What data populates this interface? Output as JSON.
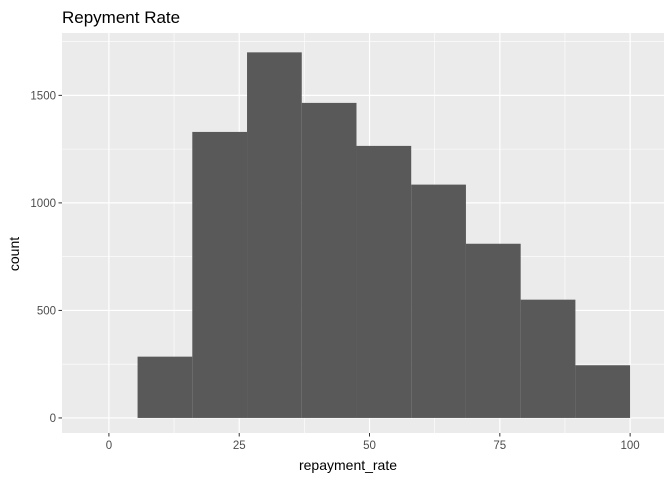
{
  "chart_data": {
    "type": "bar",
    "subtype": "histogram",
    "title": "Repyment Rate",
    "xlabel": "repayment_rate",
    "ylabel": "count",
    "bins": [
      {
        "x0": 5.5,
        "x1": 16.0,
        "count": 285
      },
      {
        "x0": 16.0,
        "x1": 26.5,
        "count": 1330
      },
      {
        "x0": 26.5,
        "x1": 37.0,
        "count": 1700
      },
      {
        "x0": 37.0,
        "x1": 47.5,
        "count": 1465
      },
      {
        "x0": 47.5,
        "x1": 58.0,
        "count": 1265
      },
      {
        "x0": 58.0,
        "x1": 68.5,
        "count": 1085
      },
      {
        "x0": 68.5,
        "x1": 79.0,
        "count": 810
      },
      {
        "x0": 79.0,
        "x1": 89.5,
        "count": 550
      },
      {
        "x0": 89.5,
        "x1": 100.0,
        "count": 245
      }
    ],
    "xlim": [
      -9,
      106.5
    ],
    "ylim": [
      -70,
      1790
    ],
    "xticks": [
      0,
      25,
      50,
      75,
      100
    ],
    "yticks": [
      0,
      500,
      1000,
      1500
    ],
    "grid": true,
    "colors": {
      "panel_background": "#ebebeb",
      "grid_major": "#ffffff",
      "bar_fill": "#595959",
      "tick_label": "#4d4d4d",
      "tick_mark": "#333333"
    }
  }
}
